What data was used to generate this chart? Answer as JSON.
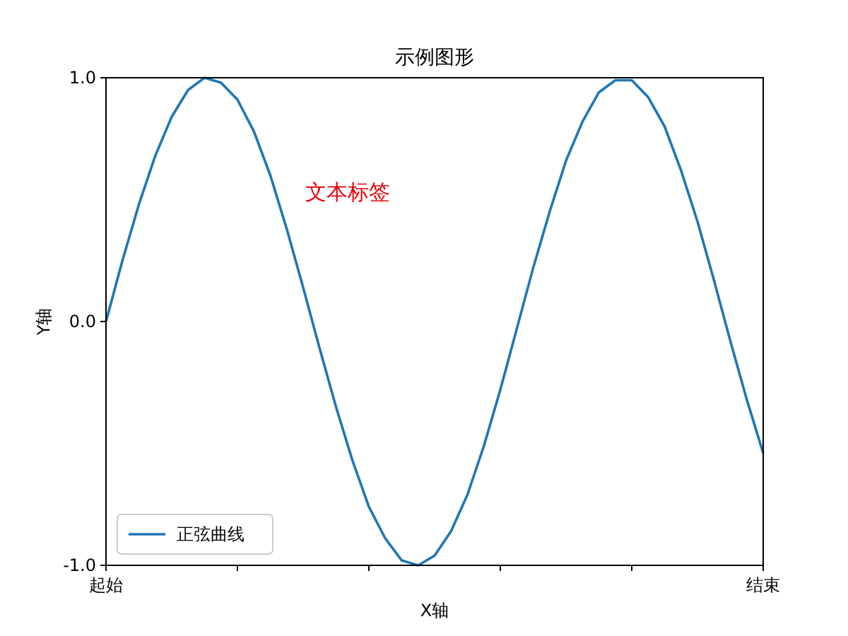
{
  "chart_data": {
    "type": "line",
    "title": "示例图形",
    "xlabel": "X轴",
    "ylabel": "Y轴",
    "ylim": [
      -1,
      1
    ],
    "categories": [
      "起始",
      null,
      null,
      null,
      null,
      null,
      null,
      null,
      null,
      null,
      null,
      null,
      null,
      null,
      null,
      null,
      null,
      null,
      null,
      null,
      null,
      null,
      null,
      null,
      null,
      null,
      null,
      null,
      null,
      null,
      null,
      null,
      null,
      null,
      null,
      null,
      null,
      null,
      null,
      null,
      "结束"
    ],
    "yticks": [
      {
        "value": -1,
        "label": "-1.0"
      },
      {
        "value": 0,
        "label": "0.0"
      },
      {
        "value": 1,
        "label": "1.0"
      }
    ],
    "legend": "bottom left",
    "grid": false,
    "annotations": [
      "文本标签"
    ],
    "series": [
      {
        "name": "正弦曲线",
        "color": "#1f77b4",
        "values": [
          0,
          0.25,
          0.48,
          0.68,
          0.84,
          0.95,
          1.0,
          0.98,
          0.91,
          0.78,
          0.6,
          0.38,
          0.14,
          -0.11,
          -0.35,
          -0.57,
          -0.76,
          -0.89,
          -0.98,
          -1.0,
          -0.96,
          -0.86,
          -0.71,
          -0.51,
          -0.28,
          -0.03,
          0.22,
          0.45,
          0.66,
          0.82,
          0.94,
          0.99,
          0.99,
          0.92,
          0.8,
          0.62,
          0.41,
          0.17,
          -0.08,
          -0.32,
          -0.54
        ]
      }
    ]
  }
}
